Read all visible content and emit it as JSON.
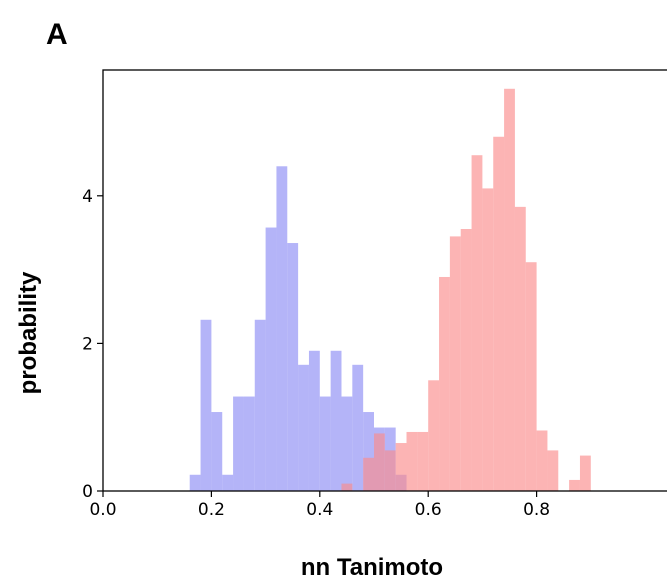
{
  "panel_label": "A",
  "chart_data": {
    "type": "bar",
    "xlabel": "nn Tanimoto",
    "ylabel": "probability",
    "xlim": [
      0.0,
      1.0
    ],
    "ylim": [
      0,
      5.55
    ],
    "bin_width": 0.02,
    "x_ticks": [
      {
        "value": 0.0,
        "label": "0.0"
      },
      {
        "value": 0.2,
        "label": "0.2"
      },
      {
        "value": 0.4,
        "label": "0.4"
      },
      {
        "value": 0.6,
        "label": "0.6"
      },
      {
        "value": 0.8,
        "label": "0.8"
      }
    ],
    "y_ticks": [
      {
        "value": 0,
        "label": "0"
      },
      {
        "value": 2,
        "label": "2"
      },
      {
        "value": 4,
        "label": "4"
      }
    ],
    "grid": false,
    "series": [
      {
        "color": "#8c8cf5",
        "opacity": 0.65,
        "bins": [
          {
            "x0": 0.16,
            "value": 0.22
          },
          {
            "x0": 0.18,
            "value": 2.32
          },
          {
            "x0": 0.2,
            "value": 1.07
          },
          {
            "x0": 0.22,
            "value": 0.22
          },
          {
            "x0": 0.24,
            "value": 1.28
          },
          {
            "x0": 0.26,
            "value": 1.28
          },
          {
            "x0": 0.28,
            "value": 2.32
          },
          {
            "x0": 0.3,
            "value": 3.57
          },
          {
            "x0": 0.32,
            "value": 4.4
          },
          {
            "x0": 0.34,
            "value": 3.36
          },
          {
            "x0": 0.36,
            "value": 1.71
          },
          {
            "x0": 0.38,
            "value": 1.9
          },
          {
            "x0": 0.4,
            "value": 1.28
          },
          {
            "x0": 0.42,
            "value": 1.9
          },
          {
            "x0": 0.44,
            "value": 1.28
          },
          {
            "x0": 0.46,
            "value": 1.71
          },
          {
            "x0": 0.48,
            "value": 1.07
          },
          {
            "x0": 0.5,
            "value": 0.86
          },
          {
            "x0": 0.52,
            "value": 0.86
          },
          {
            "x0": 0.54,
            "value": 0.22
          }
        ]
      },
      {
        "color": "#fa8c8c",
        "opacity": 0.65,
        "bins": [
          {
            "x0": 0.44,
            "value": 0.1
          },
          {
            "x0": 0.48,
            "value": 0.45
          },
          {
            "x0": 0.5,
            "value": 0.78
          },
          {
            "x0": 0.52,
            "value": 0.55
          },
          {
            "x0": 0.54,
            "value": 0.65
          },
          {
            "x0": 0.56,
            "value": 0.8
          },
          {
            "x0": 0.58,
            "value": 0.8
          },
          {
            "x0": 0.6,
            "value": 1.5
          },
          {
            "x0": 0.62,
            "value": 2.9
          },
          {
            "x0": 0.64,
            "value": 3.45
          },
          {
            "x0": 0.66,
            "value": 3.55
          },
          {
            "x0": 0.68,
            "value": 4.55
          },
          {
            "x0": 0.7,
            "value": 4.1
          },
          {
            "x0": 0.72,
            "value": 4.8
          },
          {
            "x0": 0.74,
            "value": 5.45
          },
          {
            "x0": 0.76,
            "value": 3.85
          },
          {
            "x0": 0.78,
            "value": 3.1
          },
          {
            "x0": 0.8,
            "value": 0.82
          },
          {
            "x0": 0.82,
            "value": 0.55
          },
          {
            "x0": 0.86,
            "value": 0.15
          },
          {
            "x0": 0.88,
            "value": 0.48
          }
        ]
      }
    ]
  }
}
